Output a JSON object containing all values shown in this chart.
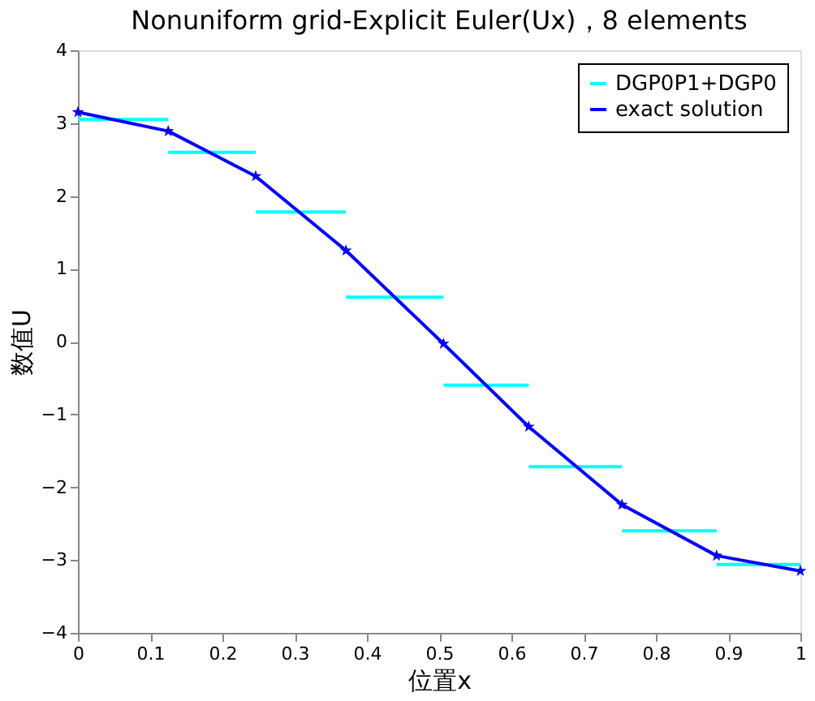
{
  "chart_data": {
    "type": "line",
    "title": "Nonuniform grid-Explicit Euler(Ux)，8 elements",
    "xlabel": "位置x",
    "ylabel": "数值U",
    "xlim": [
      0,
      1
    ],
    "xticks": [
      0,
      0.1,
      0.2,
      0.3,
      0.4,
      0.5,
      0.6,
      0.7,
      0.8,
      0.9,
      1
    ],
    "ylim": [
      -4,
      4
    ],
    "yticks": [
      -4,
      -3,
      -2,
      -1,
      0,
      1,
      2,
      3,
      4
    ],
    "grid": false,
    "legend": "top right",
    "line_style": "solid",
    "series": [
      {
        "name": "DGP0P1+DGP0",
        "color": "#00ffff",
        "marker": "none",
        "x": [
          0,
          0.125,
          null,
          0.125,
          0.246,
          null,
          0.246,
          0.371,
          null,
          0.371,
          0.506,
          null,
          0.506,
          0.624,
          null,
          0.624,
          0.753,
          null,
          0.753,
          0.884,
          null,
          0.884,
          1
        ],
        "values": [
          3.05,
          3.05,
          null,
          2.6,
          2.6,
          null,
          1.78,
          1.78,
          null,
          0.61,
          0.61,
          null,
          -0.6,
          -0.6,
          null,
          -1.72,
          -1.72,
          null,
          -2.6,
          -2.6,
          null,
          -3.06,
          -3.06
        ]
      },
      {
        "name": "exact solution",
        "color": "#0000ff",
        "marker": "star",
        "x": [
          0,
          0.125,
          0.246,
          0.371,
          0.506,
          0.624,
          0.753,
          0.884,
          1
        ],
        "values": [
          3.15,
          2.89,
          2.27,
          1.25,
          -0.03,
          -1.17,
          -2.24,
          -2.94,
          -3.15
        ]
      }
    ]
  }
}
